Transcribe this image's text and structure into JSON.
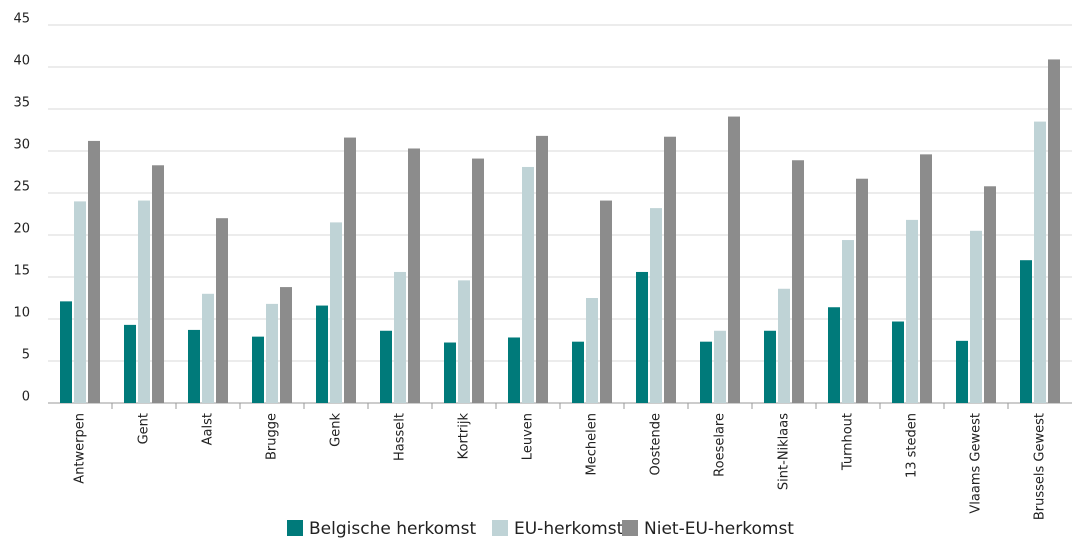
{
  "chart_data": {
    "type": "bar",
    "categories": [
      "Antwerpen",
      "Gent",
      "Aalst",
      "Brugge",
      "Genk",
      "Hasselt",
      "Kortrijk",
      "Leuven",
      "Mechelen",
      "Oostende",
      "Roeselare",
      "Sint-Niklaas",
      "Turnhout",
      "13 steden",
      "Vlaams Gewest",
      "Brussels Gewest"
    ],
    "series": [
      {
        "name": "Belgische herkomst",
        "color": "#007a7a",
        "values": [
          12.1,
          9.3,
          8.7,
          7.9,
          11.6,
          8.6,
          7.2,
          7.8,
          7.3,
          15.6,
          7.3,
          8.6,
          11.4,
          9.7,
          7.4,
          17.0
        ]
      },
      {
        "name": "EU-herkomst",
        "color": "#bfd3d6",
        "values": [
          24.0,
          24.1,
          13.0,
          11.8,
          21.5,
          15.6,
          14.6,
          28.1,
          12.5,
          23.2,
          8.6,
          13.6,
          19.4,
          21.8,
          20.5,
          33.5
        ]
      },
      {
        "name": "Niet-EU-herkomst",
        "color": "#8c8c8c",
        "values": [
          31.2,
          28.3,
          22.0,
          13.8,
          31.6,
          30.3,
          29.1,
          31.8,
          24.1,
          31.7,
          34.1,
          28.9,
          26.7,
          29.6,
          25.8,
          40.9
        ]
      }
    ],
    "ylim": [
      0,
      45
    ],
    "yticks": [
      0,
      5,
      10,
      15,
      20,
      25,
      30,
      35,
      40,
      45
    ],
    "grid": true,
    "legend": "bottom"
  }
}
